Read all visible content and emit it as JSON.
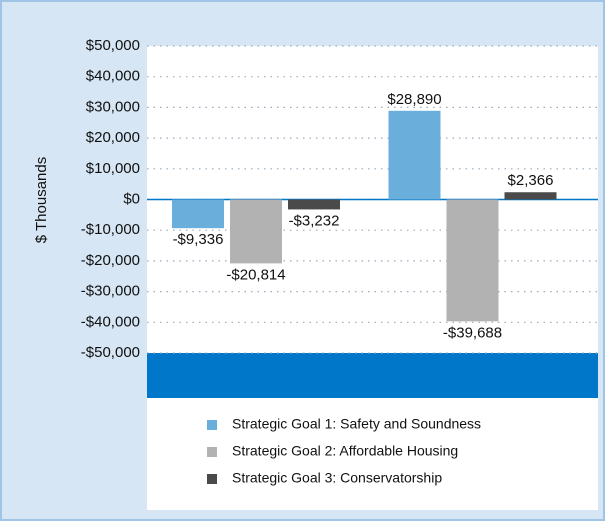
{
  "chart_data": {
    "type": "bar",
    "y_label": "$ Thousands",
    "categories": [
      null,
      null
    ],
    "series": [
      {
        "name": "Strategic Goal 1: Safety and Soundness",
        "color": "#6aaedc",
        "values": [
          -9336,
          28890
        ],
        "value_labels": [
          "-$9,336",
          "$28,890"
        ]
      },
      {
        "name": "Strategic Goal 2: Affordable Housing",
        "color": "#b2b2b2",
        "values": [
          -20814,
          -39688
        ],
        "value_labels": [
          "-$20,814",
          "-$39,688"
        ]
      },
      {
        "name": "Strategic Goal 3: Conservatorship",
        "color": "#4a4a4a",
        "values": [
          -3232,
          2366
        ],
        "value_labels": [
          "-$3,232",
          "$2,366"
        ]
      }
    ],
    "ylim": [
      -50000,
      50000
    ],
    "yticks": [
      {
        "value": 50000,
        "label": "$50,000"
      },
      {
        "value": 40000,
        "label": "$40,000"
      },
      {
        "value": 30000,
        "label": "$30,000"
      },
      {
        "value": 20000,
        "label": "$20,000"
      },
      {
        "value": 10000,
        "label": "$10,000"
      },
      {
        "value": 0,
        "label": "$0"
      },
      {
        "value": -10000,
        "label": "-$10,000"
      },
      {
        "value": -20000,
        "label": "-$20,000"
      },
      {
        "value": -30000,
        "label": "-$30,000"
      },
      {
        "value": -40000,
        "label": "-$40,000"
      },
      {
        "value": -50000,
        "label": "-$50,000"
      }
    ],
    "grid": true,
    "legend": "bottom"
  }
}
